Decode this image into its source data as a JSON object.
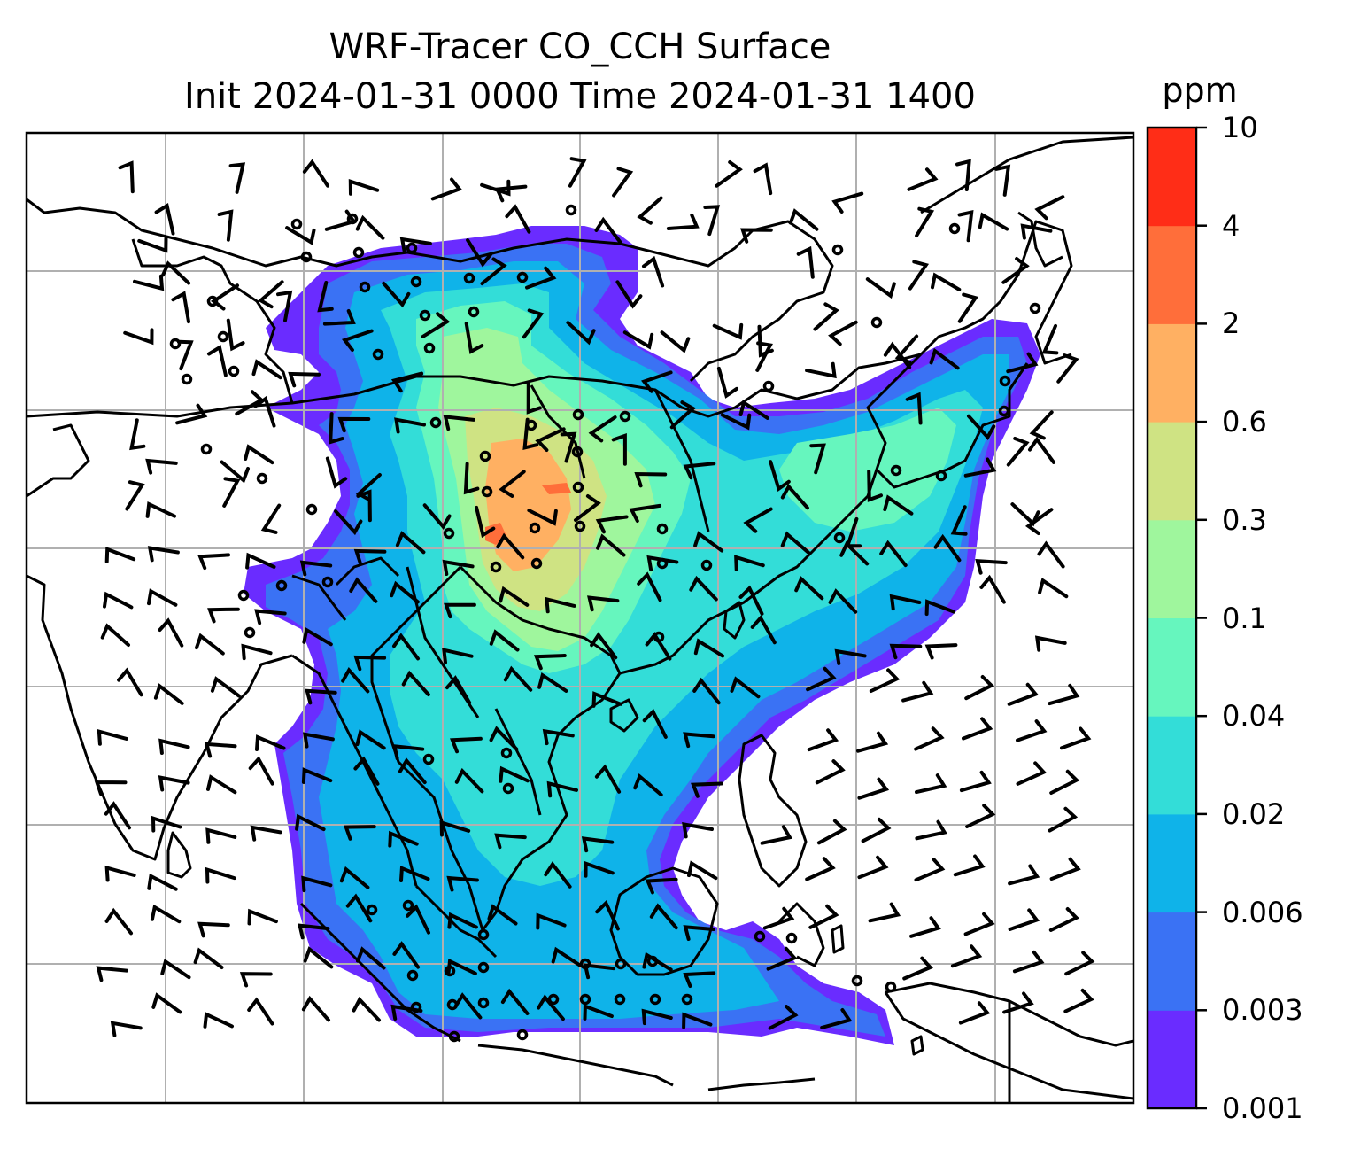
{
  "title": {
    "line1": "WRF-Tracer CO_CCH Surface",
    "line2": "Init 2024-01-31 0000 Time 2024-01-31 1400"
  },
  "colorbar": {
    "unit": "ppm",
    "levels": [
      "0.001",
      "0.003",
      "0.006",
      "0.02",
      "0.04",
      "0.1",
      "0.3",
      "0.6",
      "2",
      "4",
      "10"
    ],
    "colors": [
      "#6a2cff",
      "#3a72f4",
      "#0fb3e9",
      "#33ddd8",
      "#66f6be",
      "#9ff69d",
      "#cfe383",
      "#ffb062",
      "#ff6e3a",
      "#ff2d17"
    ]
  },
  "map": {
    "features": [
      "coastlines",
      "country-borders",
      "lat-lon-gridlines",
      "wind-barbs",
      "calm-circles",
      "tracer-concentration-contours"
    ],
    "gridline_color": "#b0b0b0"
  }
}
